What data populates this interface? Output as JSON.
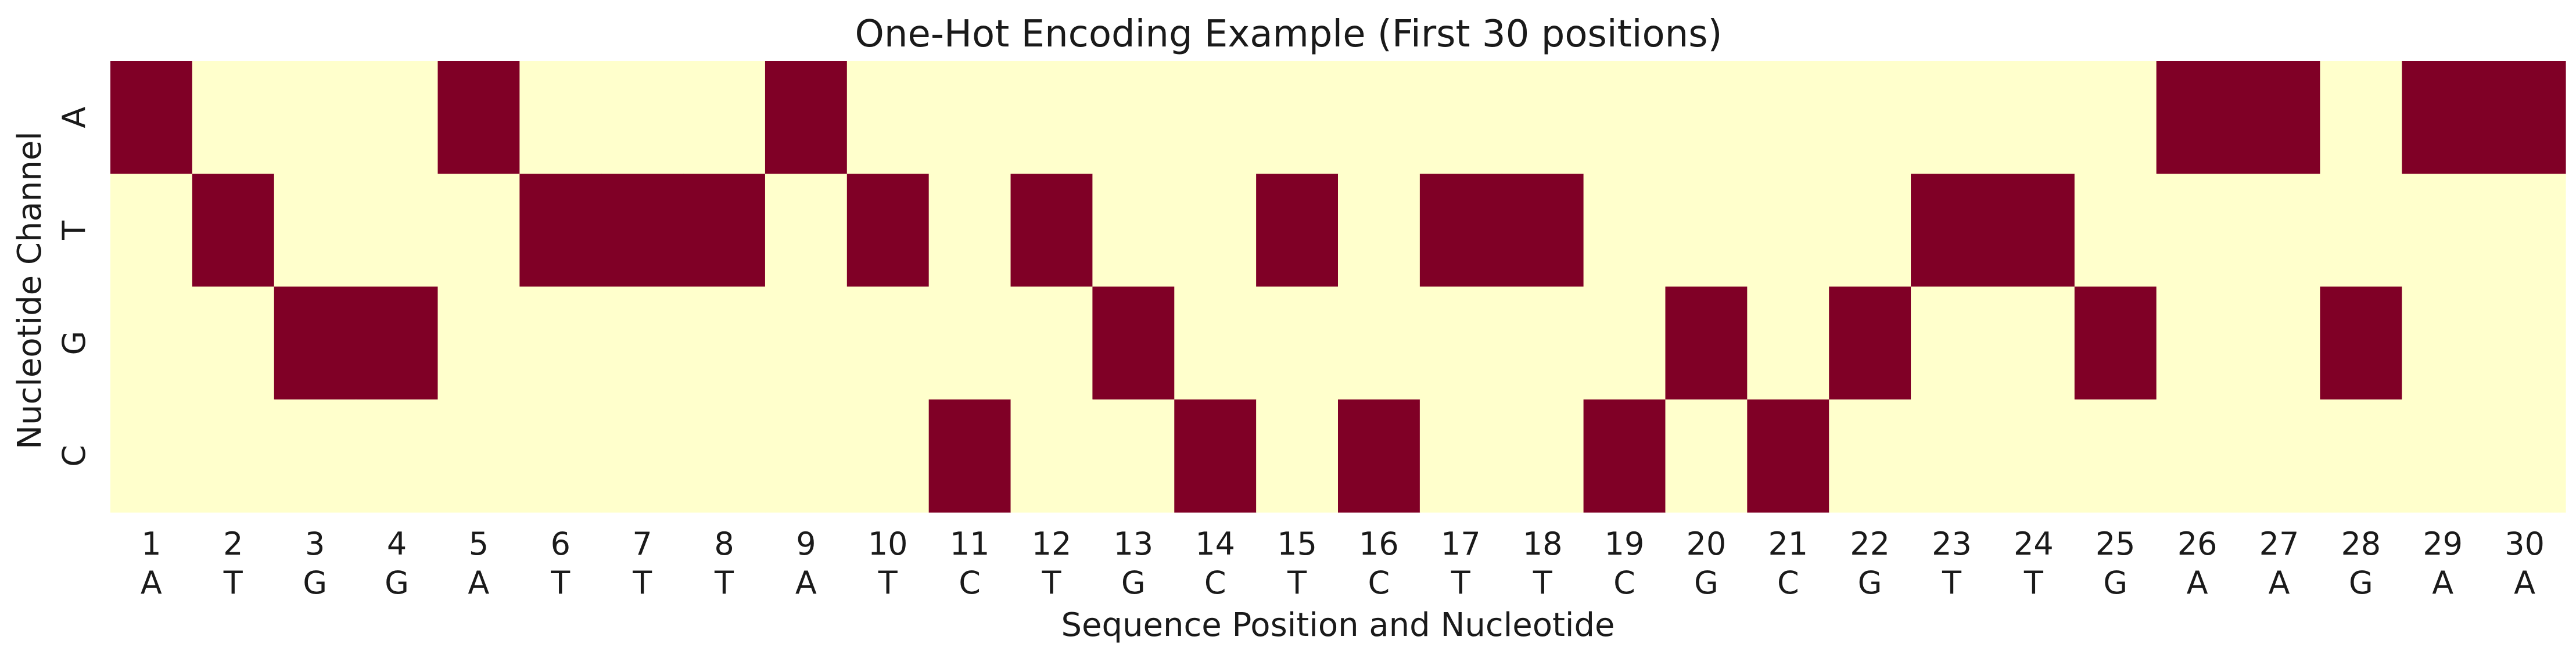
{
  "chart_data": {
    "type": "heatmap",
    "title": "One-Hot Encoding Example (First 30 positions)",
    "xlabel": "Sequence Position and Nucleotide",
    "ylabel": "Nucleotide Channel",
    "rows": [
      "A",
      "T",
      "G",
      "C"
    ],
    "positions": [
      "1",
      "2",
      "3",
      "4",
      "5",
      "6",
      "7",
      "8",
      "9",
      "10",
      "11",
      "12",
      "13",
      "14",
      "15",
      "16",
      "17",
      "18",
      "19",
      "20",
      "21",
      "22",
      "23",
      "24",
      "25",
      "26",
      "27",
      "28",
      "29",
      "30"
    ],
    "sequence": [
      "A",
      "T",
      "G",
      "G",
      "A",
      "T",
      "T",
      "T",
      "A",
      "T",
      "C",
      "T",
      "G",
      "C",
      "T",
      "C",
      "T",
      "T",
      "C",
      "G",
      "C",
      "G",
      "T",
      "T",
      "G",
      "A",
      "A",
      "G",
      "A",
      "A"
    ],
    "colors": {
      "off": "#ffffcc",
      "on": "#800026"
    }
  }
}
